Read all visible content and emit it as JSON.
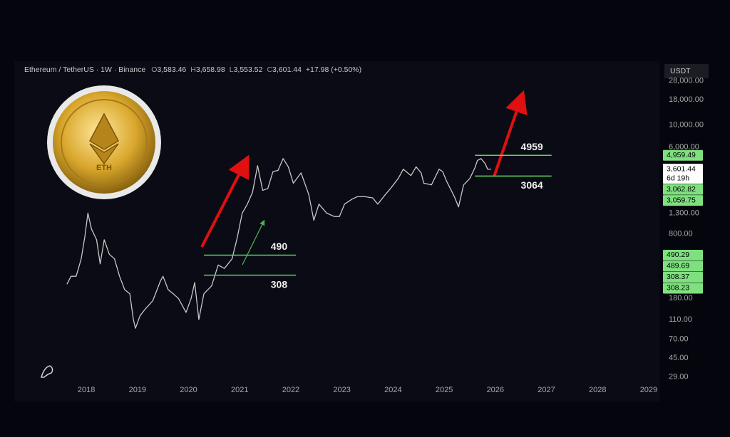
{
  "header": {
    "symbol": "Ethereum / TetherUS · 1W · Binance",
    "ohlc": [
      {
        "key": "O",
        "value": "3,583.46"
      },
      {
        "key": "H",
        "value": "3,658.98"
      },
      {
        "key": "L",
        "value": "3,553.52"
      },
      {
        "key": "C",
        "value": "3,601.44"
      }
    ],
    "change": "+17.98 (+0.50%)",
    "currency": "USDT"
  },
  "coin_label": "ETH",
  "chart_data": {
    "type": "line",
    "log_scale": true,
    "color": "#c8c8c8",
    "xlim": [
      2016.59,
      2029.21
    ],
    "ylim": [
      24.5,
      44000
    ],
    "xticks": [
      2018,
      2019,
      2020,
      2021,
      2022,
      2023,
      2024,
      2025,
      2026,
      2027,
      2028,
      2029
    ],
    "yticks": [
      {
        "value": 28000,
        "label": "28,000.00"
      },
      {
        "value": 18000,
        "label": "18,000.00"
      },
      {
        "value": 10000,
        "label": "10,000.00"
      },
      {
        "value": 6000,
        "label": "6,000.00"
      },
      {
        "value": 1300,
        "label": "1,300.00"
      },
      {
        "value": 800,
        "label": "800.00"
      },
      {
        "value": 180,
        "label": "180.00"
      },
      {
        "value": 110,
        "label": "110.00"
      },
      {
        "value": 70,
        "label": "70.00"
      },
      {
        "value": 45,
        "label": "45.00"
      },
      {
        "value": 29,
        "label": "29.00"
      }
    ],
    "x": [
      2017.62,
      2017.7,
      2017.8,
      2017.9,
      2017.97,
      2018.03,
      2018.1,
      2018.2,
      2018.27,
      2018.35,
      2018.45,
      2018.55,
      2018.65,
      2018.75,
      2018.85,
      2018.92,
      2018.96,
      2019.05,
      2019.15,
      2019.3,
      2019.45,
      2019.5,
      2019.6,
      2019.7,
      2019.8,
      2019.95,
      2020.05,
      2020.12,
      2020.2,
      2020.3,
      2020.45,
      2020.58,
      2020.7,
      2020.85,
      2020.95,
      2021.05,
      2021.15,
      2021.25,
      2021.35,
      2021.45,
      2021.55,
      2021.65,
      2021.75,
      2021.85,
      2021.95,
      2022.05,
      2022.2,
      2022.35,
      2022.45,
      2022.55,
      2022.7,
      2022.85,
      2022.95,
      2023.05,
      2023.2,
      2023.3,
      2023.45,
      2023.6,
      2023.7,
      2023.85,
      2023.95,
      2024.1,
      2024.2,
      2024.35,
      2024.45,
      2024.55,
      2024.6,
      2024.75,
      2024.9,
      2024.97,
      2025.05,
      2025.2,
      2025.28,
      2025.38,
      2025.5,
      2025.6,
      2025.65,
      2025.72,
      2025.8,
      2025.85,
      2025.92
    ],
    "values": [
      250,
      300,
      300,
      450,
      750,
      1300,
      900,
      700,
      400,
      700,
      500,
      450,
      300,
      220,
      200,
      110,
      90,
      120,
      140,
      170,
      270,
      300,
      220,
      200,
      180,
      130,
      180,
      260,
      110,
      200,
      240,
      390,
      360,
      450,
      730,
      1300,
      1600,
      2100,
      3900,
      2200,
      2300,
      3400,
      3500,
      4600,
      3800,
      2600,
      3300,
      2000,
      1100,
      1600,
      1300,
      1200,
      1200,
      1600,
      1800,
      1900,
      1900,
      1850,
      1600,
      2000,
      2300,
      2900,
      3600,
      3100,
      3800,
      3300,
      2600,
      2500,
      3600,
      3400,
      2700,
      1900,
      1500,
      2500,
      2900,
      3700,
      4400,
      4600,
      4100,
      3600,
      3601.44
    ],
    "levels": [
      {
        "value": 490,
        "start": 2020.3,
        "end": 2022.1,
        "label_position": "above"
      },
      {
        "value": 308,
        "start": 2020.3,
        "end": 2022.1,
        "label_position": "below"
      },
      {
        "value": 4959,
        "start": 2025.6,
        "end": 2027.1,
        "label_position": "above"
      },
      {
        "value": 3064,
        "start": 2025.6,
        "end": 2027.1,
        "label_position": "below"
      }
    ],
    "price_labels": [
      {
        "value": 4959.49,
        "label": "4,959.49",
        "color": "#7ee07e"
      },
      {
        "value": 3601.44,
        "label": "3,601.44",
        "color": "#ffffff",
        "countdown": "6d 19h"
      },
      {
        "value": 3062.82,
        "label": "3,062.82",
        "color": "#7ee07e"
      },
      {
        "value": 3059.75,
        "label": "3,059.75",
        "color": "#7ee07e"
      },
      {
        "value": 490.29,
        "label": "490.29",
        "color": "#7ee07e"
      },
      {
        "value": 489.69,
        "label": "489.69",
        "color": "#7ee07e"
      },
      {
        "value": 308.37,
        "label": "308.37",
        "color": "#7ee07e"
      },
      {
        "value": 308.23,
        "label": "308.23",
        "color": "#7ee07e"
      }
    ]
  }
}
